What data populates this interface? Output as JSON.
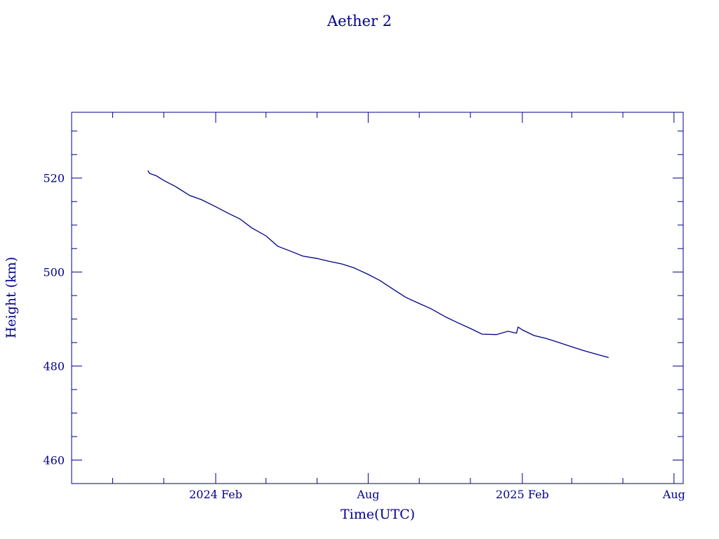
{
  "chart_data": {
    "type": "line",
    "title": "Aether 2",
    "xlabel": "Time(UTC)",
    "ylabel": "Height (km)",
    "color": "#00008b",
    "ylim": [
      455,
      534
    ],
    "xlim": [
      "2023-08-13",
      "2025-08-12"
    ],
    "y_ticks": [
      460,
      480,
      500,
      520
    ],
    "x_ticks": [
      {
        "date": "2024-02-01",
        "label": "2024 Feb"
      },
      {
        "date": "2024-08-01",
        "label": "Aug"
      },
      {
        "date": "2025-02-01",
        "label": "2025 Feb"
      },
      {
        "date": "2025-08-01",
        "label": "Aug"
      }
    ],
    "grid": false,
    "series": [
      {
        "x": [
          "2023-11-12",
          "2023-11-14",
          "2023-11-22",
          "2023-12-01",
          "2023-12-15",
          "2024-01-01",
          "2024-01-15",
          "2024-02-01",
          "2024-02-15",
          "2024-03-01",
          "2024-03-15",
          "2024-04-01",
          "2024-04-15",
          "2024-05-01",
          "2024-05-15",
          "2024-06-01",
          "2024-06-15",
          "2024-07-01",
          "2024-07-15",
          "2024-08-01",
          "2024-08-15",
          "2024-09-01",
          "2024-09-15",
          "2024-10-01",
          "2024-10-15",
          "2024-11-01",
          "2024-11-15",
          "2024-12-01",
          "2024-12-15",
          "2025-01-01",
          "2025-01-15",
          "2025-01-25",
          "2025-01-27",
          "2025-02-01",
          "2025-02-15",
          "2025-03-01",
          "2025-03-15",
          "2025-04-01",
          "2025-04-15",
          "2025-05-01",
          "2025-05-15"
        ],
        "y": [
          521.6,
          521.0,
          520.5,
          519.5,
          518.2,
          516.3,
          515.4,
          513.9,
          512.6,
          511.3,
          509.4,
          507.7,
          505.5,
          504.4,
          503.4,
          502.9,
          502.3,
          501.7,
          500.9,
          499.5,
          498.2,
          496.2,
          494.6,
          493.3,
          492.2,
          490.5,
          489.3,
          488.0,
          486.8,
          486.7,
          487.4,
          487.0,
          488.3,
          487.7,
          486.5,
          485.9,
          485.1,
          484.1,
          483.3,
          482.5,
          481.8
        ]
      }
    ]
  }
}
